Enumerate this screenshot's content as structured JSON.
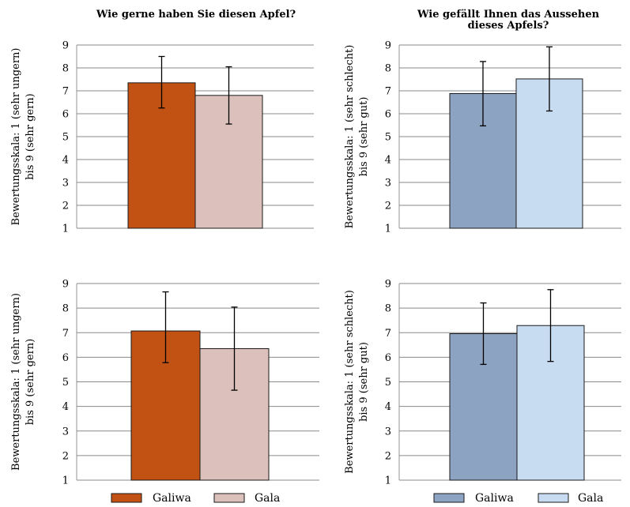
{
  "chart_data": [
    {
      "type": "bar",
      "title": "Wie gerne haben Sie diesen Apfel?",
      "ylabel_lines": [
        "Bewertungsskala: 1 (sehr ungern)",
        "bis 9 (sehr gern)"
      ],
      "ylim": [
        1,
        9
      ],
      "yticks": [
        1,
        2,
        3,
        4,
        5,
        6,
        7,
        8,
        9
      ],
      "grid": true,
      "series": [
        {
          "name": "Galiwa",
          "value": 7.35,
          "err_low": 6.25,
          "err_high": 8.5,
          "color": "#c15214"
        },
        {
          "name": "Gala",
          "value": 6.8,
          "err_low": 5.55,
          "err_high": 8.05,
          "color": "#dcc0bb"
        }
      ]
    },
    {
      "type": "bar",
      "title": "Wie gefällt Ihnen das Aussehen dieses Apfels?",
      "title_lines": [
        "Wie gefällt Ihnen das Aussehen",
        "dieses Apfels?"
      ],
      "ylabel_lines": [
        "Bewertungsskala: 1 (sehr schlecht)",
        "bis 9 (sehr gut)"
      ],
      "ylim": [
        1,
        9
      ],
      "yticks": [
        1,
        2,
        3,
        4,
        5,
        6,
        7,
        8,
        9
      ],
      "grid": true,
      "series": [
        {
          "name": "Galiwa",
          "value": 6.88,
          "err_low": 5.47,
          "err_high": 8.28,
          "color": "#8da3c2"
        },
        {
          "name": "Gala",
          "value": 7.52,
          "err_low": 6.12,
          "err_high": 8.92,
          "color": "#c8dcf1"
        }
      ]
    },
    {
      "type": "bar",
      "title": "",
      "ylabel_lines": [
        "Bewertungsskala: 1 (sehr ungern)",
        "bis 9 (sehr gern)"
      ],
      "ylim": [
        1,
        9
      ],
      "yticks": [
        1,
        2,
        3,
        4,
        5,
        6,
        7,
        8,
        9
      ],
      "grid": true,
      "series": [
        {
          "name": "Galiwa",
          "value": 7.07,
          "err_low": 5.78,
          "err_high": 8.66,
          "color": "#c15214"
        },
        {
          "name": "Gala",
          "value": 6.35,
          "err_low": 4.66,
          "err_high": 8.04,
          "color": "#dcc0bb"
        }
      ]
    },
    {
      "type": "bar",
      "title": "",
      "ylabel_lines": [
        "Bewertungsskala: 1 (sehr schlecht)",
        "bis 9 (sehr gut)"
      ],
      "ylim": [
        1,
        9
      ],
      "yticks": [
        1,
        2,
        3,
        4,
        5,
        6,
        7,
        8,
        9
      ],
      "grid": true,
      "series": [
        {
          "name": "Galiwa",
          "value": 6.96,
          "err_low": 5.71,
          "err_high": 8.21,
          "color": "#8da3c2"
        },
        {
          "name": "Gala",
          "value": 7.29,
          "err_low": 5.83,
          "err_high": 8.75,
          "color": "#c8dcf1"
        }
      ]
    }
  ],
  "legends": [
    {
      "placement": "bottom-left",
      "items": [
        {
          "label": "Galiwa",
          "color": "#c15214"
        },
        {
          "label": "Gala",
          "color": "#dcc0bb"
        }
      ]
    },
    {
      "placement": "bottom-right",
      "items": [
        {
          "label": "Galiwa",
          "color": "#8da3c2"
        },
        {
          "label": "Gala",
          "color": "#c8dcf1"
        }
      ]
    }
  ]
}
